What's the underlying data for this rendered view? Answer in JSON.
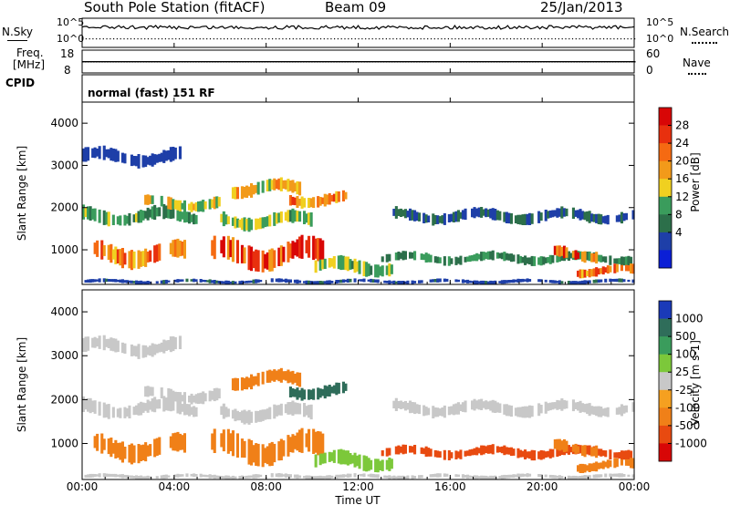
{
  "header": {
    "station": "South Pole Station (fitACF)",
    "beam": "Beam 09",
    "date": "25/Jan/2013"
  },
  "noise_panel": {
    "left_label": "N.Sky",
    "right_label": "N.Search",
    "tick_top": "10^5",
    "tick_bottom": "10^0"
  },
  "freq_panel": {
    "left_label_1": "Freq.",
    "left_label_2": "[MHz]",
    "left_ticks": [
      "18",
      "8"
    ],
    "right_label": "Nave",
    "right_ticks": [
      "60",
      "0"
    ]
  },
  "cpid": {
    "label": "CPID",
    "value": "normal (fast) 151 RF"
  },
  "colors": {
    "power_scale": [
      "#0b1fd6",
      "#1e3fa8",
      "#2c6f4a",
      "#3a9c5c",
      "#f0d020",
      "#f29a1a",
      "#f56a12",
      "#e8300e",
      "#d80606"
    ],
    "velocity_scale": [
      "#1a3ab8",
      "#2f6d5a",
      "#3a9c5c",
      "#7cc83a",
      "#c8c8c8",
      "#f5a020",
      "#f08018",
      "#e84a10",
      "#d80606"
    ]
  },
  "chart_data": [
    {
      "type": "heatmap",
      "title": "Power",
      "xlabel": "Time UT",
      "ylabel": "Slant Range [km]",
      "x_ticks": [
        "00:00",
        "04:00",
        "08:00",
        "12:00",
        "16:00",
        "20:00",
        "00:00"
      ],
      "x_range_hours": [
        0,
        24
      ],
      "y_ticks": [
        1000,
        2000,
        3000,
        4000
      ],
      "ylim": [
        180,
        4500
      ],
      "colorbar": {
        "label": "Power [dB]",
        "ticks": [
          "4",
          "8",
          "12",
          "16",
          "20",
          "24",
          "28"
        ],
        "range": [
          0,
          32
        ]
      },
      "echo_bands": [
        {
          "t_start": 0.0,
          "t_end": 24.0,
          "r_center": 250,
          "r_width": 80,
          "value": 6
        },
        {
          "t_start": 0.5,
          "t_end": 4.5,
          "r_center": 900,
          "r_width": 400,
          "value": 22
        },
        {
          "t_start": 0.0,
          "t_end": 5.0,
          "r_center": 1800,
          "r_width": 300,
          "value": 12
        },
        {
          "t_start": 2.5,
          "t_end": 6.0,
          "r_center": 2100,
          "r_width": 250,
          "value": 16
        },
        {
          "t_start": 5.5,
          "t_end": 10.5,
          "r_center": 900,
          "r_width": 500,
          "value": 26
        },
        {
          "t_start": 6.0,
          "t_end": 10.0,
          "r_center": 1700,
          "r_width": 300,
          "value": 14
        },
        {
          "t_start": 6.5,
          "t_end": 9.5,
          "r_center": 2450,
          "r_width": 300,
          "value": 18
        },
        {
          "t_start": 9.0,
          "t_end": 11.5,
          "r_center": 2200,
          "r_width": 250,
          "value": 22
        },
        {
          "t_start": 10.0,
          "t_end": 13.5,
          "r_center": 600,
          "r_width": 300,
          "value": 14
        },
        {
          "t_start": 13.0,
          "t_end": 24.0,
          "r_center": 800,
          "r_width": 200,
          "value": 10
        },
        {
          "t_start": 13.5,
          "t_end": 24.0,
          "r_center": 1800,
          "r_width": 250,
          "value": 7
        },
        {
          "t_start": 20.5,
          "t_end": 22.5,
          "r_center": 900,
          "r_width": 250,
          "value": 24
        },
        {
          "t_start": 21.5,
          "t_end": 24.0,
          "r_center": 500,
          "r_width": 200,
          "value": 22
        },
        {
          "t_start": 0.0,
          "t_end": 4.5,
          "r_center": 3200,
          "r_width": 300,
          "value": 6
        }
      ]
    },
    {
      "type": "heatmap",
      "title": "Velocity",
      "xlabel": "Time UT",
      "ylabel": "Slant Range [km]",
      "x_ticks": [
        "00:00",
        "04:00",
        "08:00",
        "12:00",
        "16:00",
        "20:00",
        "00:00"
      ],
      "x_range_hours": [
        0,
        24
      ],
      "y_ticks": [
        1000,
        2000,
        3000,
        4000
      ],
      "ylim": [
        180,
        4500
      ],
      "colorbar": {
        "label": "Velocity [m s-1]",
        "ticks": [
          "1000",
          "500",
          "100",
          "25",
          "-25",
          "-100",
          "-500",
          "-1000"
        ],
        "range": [
          -1200,
          1200
        ]
      },
      "echo_bands": [
        {
          "t_start": 0.0,
          "t_end": 24.0,
          "r_center": 250,
          "r_width": 80,
          "value": 20
        },
        {
          "t_start": 0.5,
          "t_end": 4.5,
          "r_center": 900,
          "r_width": 400,
          "value": -150
        },
        {
          "t_start": 0.0,
          "t_end": 5.0,
          "r_center": 1800,
          "r_width": 300,
          "value": 0
        },
        {
          "t_start": 2.5,
          "t_end": 6.0,
          "r_center": 2100,
          "r_width": 250,
          "value": 0
        },
        {
          "t_start": 5.5,
          "t_end": 10.5,
          "r_center": 900,
          "r_width": 500,
          "value": -400
        },
        {
          "t_start": 6.0,
          "t_end": 10.0,
          "r_center": 1700,
          "r_width": 300,
          "value": 0
        },
        {
          "t_start": 6.5,
          "t_end": 9.5,
          "r_center": 2450,
          "r_width": 300,
          "value": -200
        },
        {
          "t_start": 9.0,
          "t_end": 11.5,
          "r_center": 2200,
          "r_width": 250,
          "value": 800
        },
        {
          "t_start": 10.0,
          "t_end": 13.5,
          "r_center": 600,
          "r_width": 300,
          "value": 60
        },
        {
          "t_start": 13.0,
          "t_end": 24.0,
          "r_center": 800,
          "r_width": 200,
          "value": -700
        },
        {
          "t_start": 13.5,
          "t_end": 24.0,
          "r_center": 1800,
          "r_width": 250,
          "value": 0
        },
        {
          "t_start": 20.5,
          "t_end": 22.5,
          "r_center": 900,
          "r_width": 250,
          "value": -400
        },
        {
          "t_start": 21.5,
          "t_end": 24.0,
          "r_center": 500,
          "r_width": 200,
          "value": -300
        },
        {
          "t_start": 0.0,
          "t_end": 4.5,
          "r_center": 3200,
          "r_width": 300,
          "value": 0
        }
      ]
    }
  ]
}
